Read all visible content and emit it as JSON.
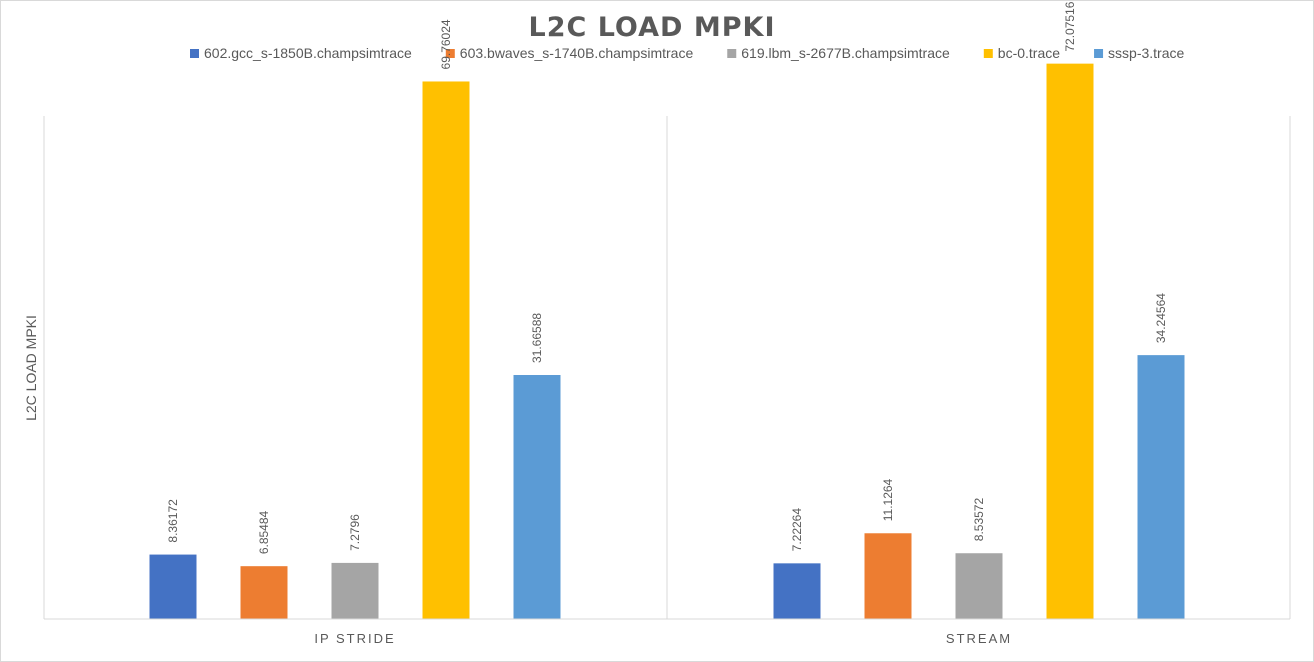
{
  "chart_data": {
    "type": "bar",
    "title": "L2C LOAD MPKI",
    "xlabel": "",
    "ylabel": "L2C LOAD MPKI",
    "categories": [
      "IP STRIDE",
      "STREAM"
    ],
    "series": [
      {
        "name": "602.gcc_s-1850B.champsimtrace",
        "color": "#4472C4",
        "values": [
          8.36172,
          7.22264
        ],
        "labels": [
          "8.36172",
          "7.22264"
        ]
      },
      {
        "name": "603.bwaves_s-1740B.champsimtrace",
        "color": "#ED7D31",
        "values": [
          6.85484,
          11.1264
        ],
        "labels": [
          "6.85484",
          "11.1264"
        ]
      },
      {
        "name": "619.lbm_s-2677B.champsimtrace",
        "color": "#A5A5A5",
        "values": [
          7.2796,
          8.53572
        ],
        "labels": [
          "7.2796",
          "8.53572"
        ]
      },
      {
        "name": "bc-0.trace",
        "color": "#FFC000",
        "values": [
          69.76024,
          72.07516
        ],
        "labels": [
          "69.76024",
          "72.07516"
        ]
      },
      {
        "name": "sssp-3.trace",
        "color": "#5B9BD5",
        "values": [
          31.66588,
          34.24564
        ],
        "labels": [
          "31.66588",
          "34.24564"
        ]
      }
    ],
    "ylim": [
      0,
      80
    ],
    "grid": false,
    "legend_position": "top"
  }
}
